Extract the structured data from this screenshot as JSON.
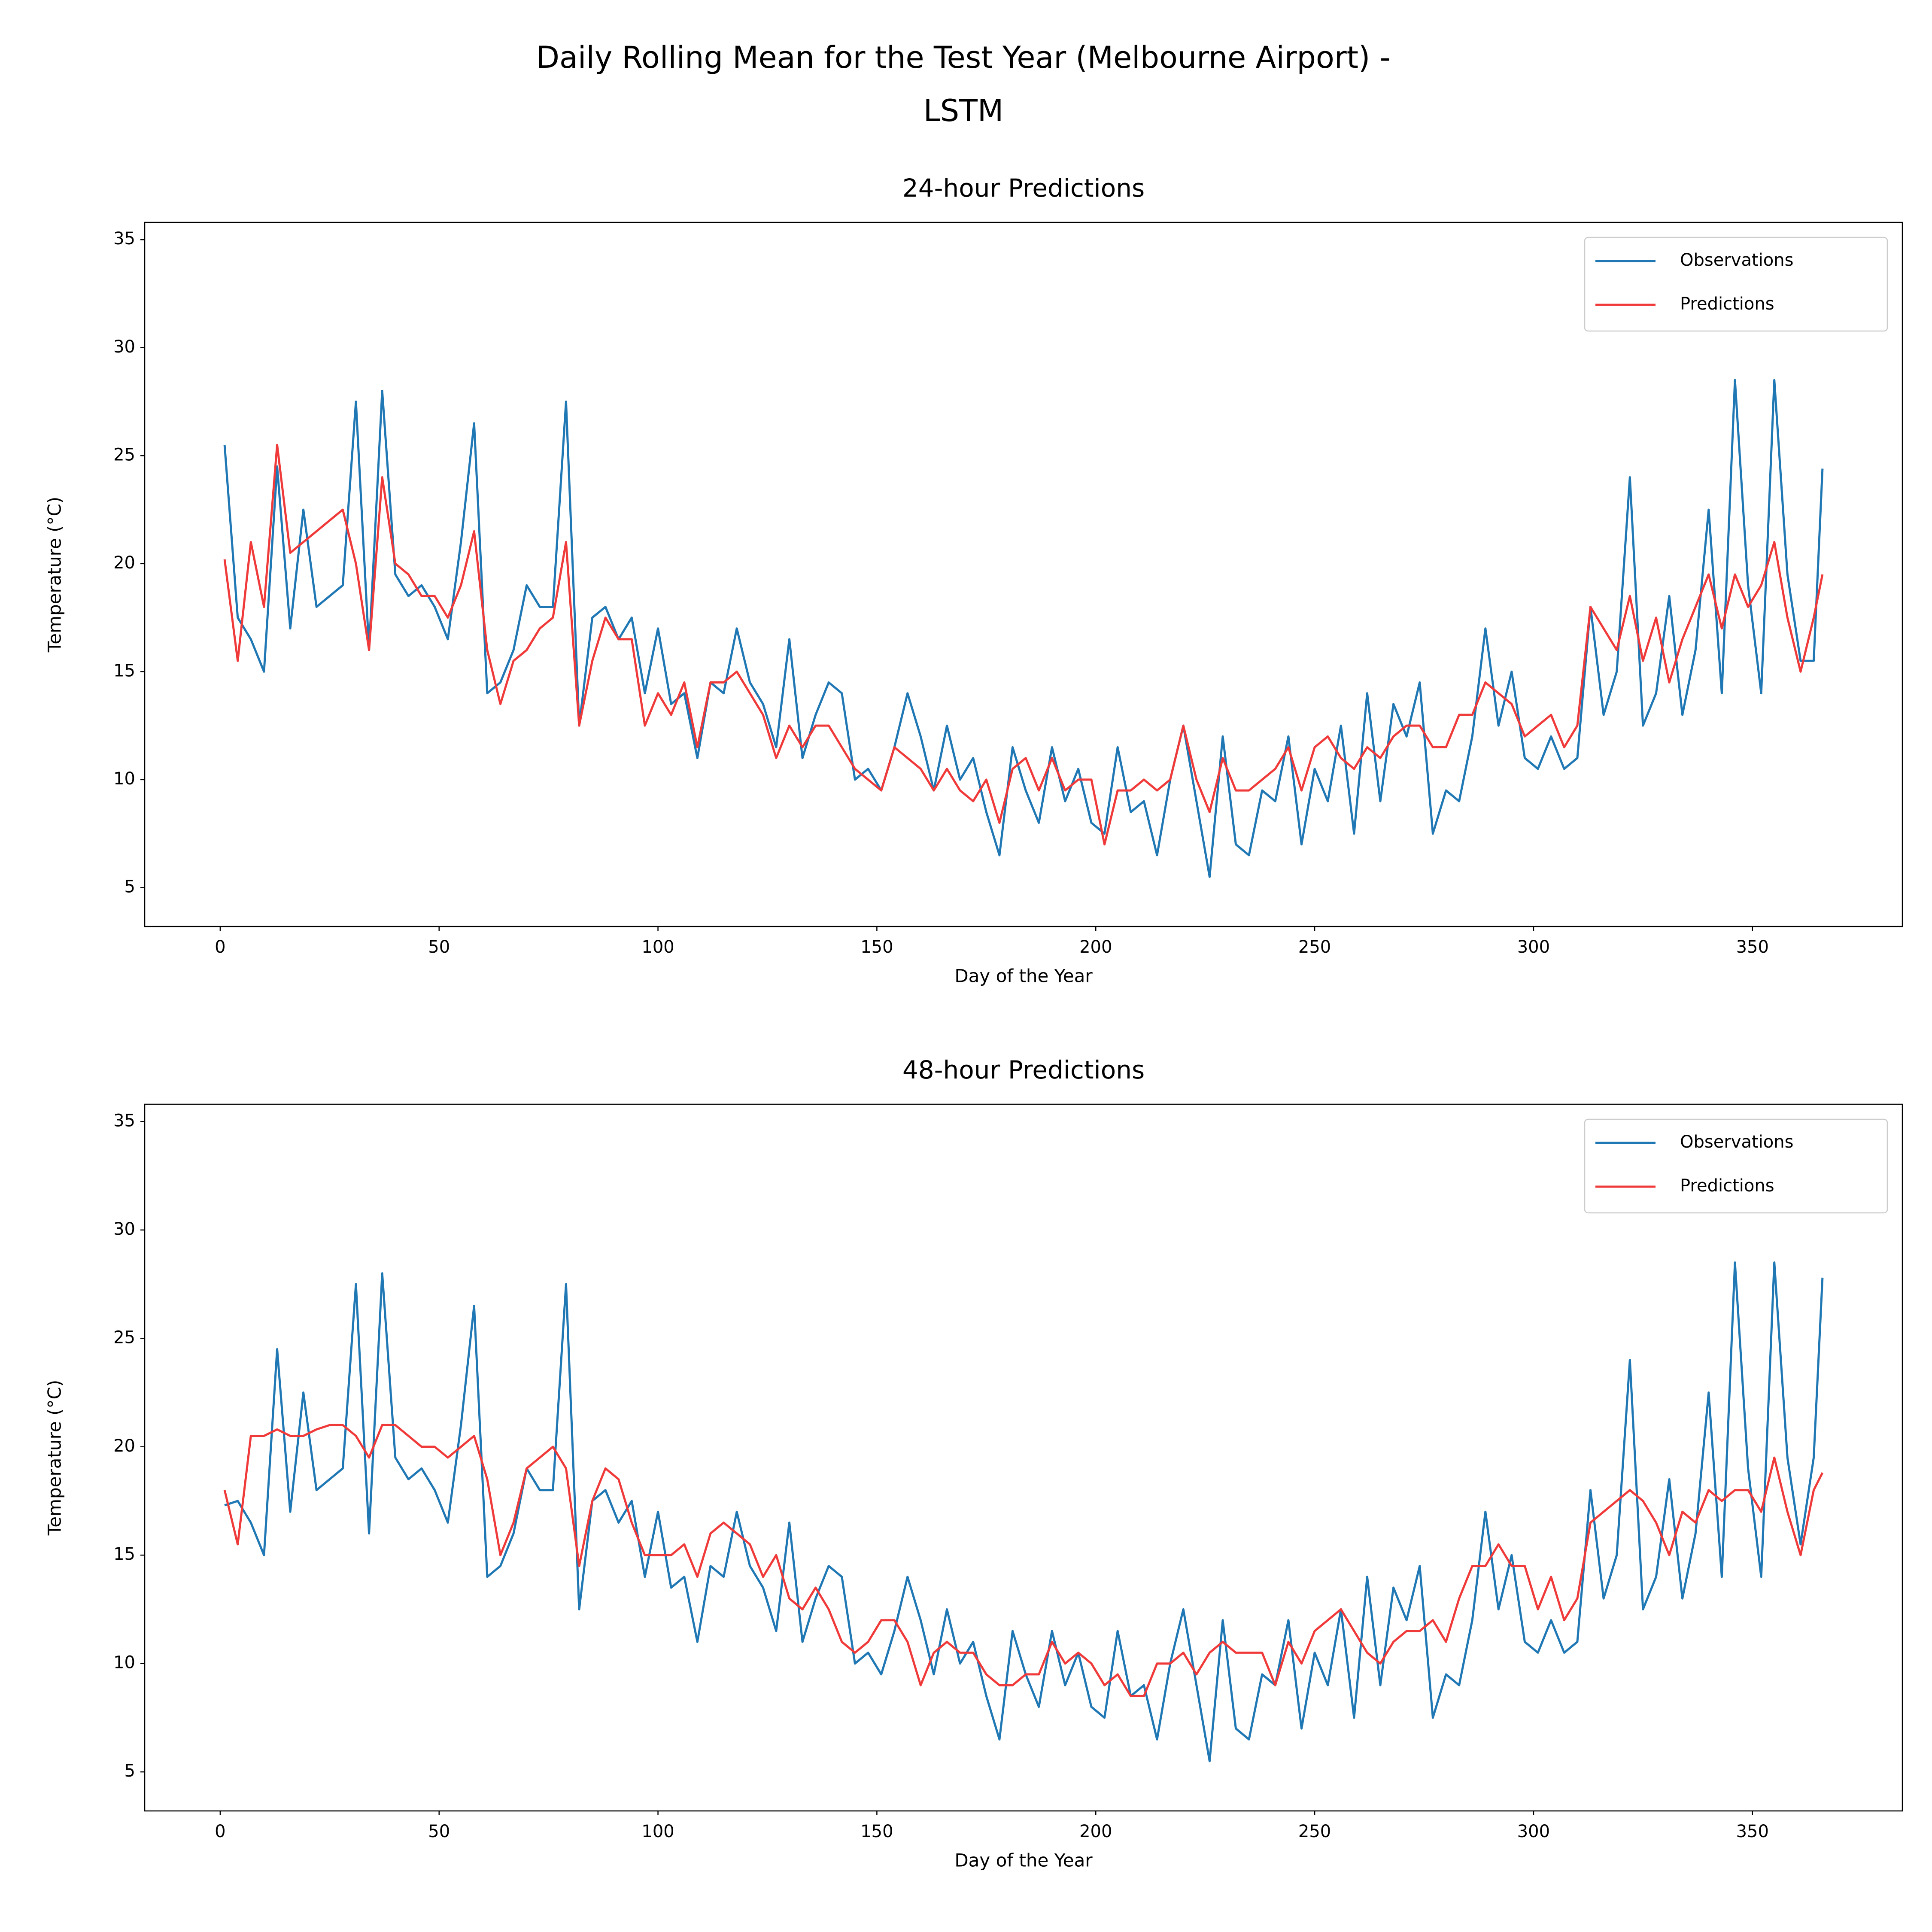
{
  "title": "Daily Rolling Mean for the Test Year (Melbourne Airport) -\nLSTM",
  "chart_data": [
    {
      "type": "line",
      "title": "24-hour Predictions",
      "x_label": "Day of the Year",
      "y_label": "Temperature (°C)",
      "xlim": [
        -17.25,
        384.25
      ],
      "xticks": [
        0,
        50,
        100,
        150,
        200,
        250,
        300,
        350
      ],
      "ylim": [
        3.2,
        35.8
      ],
      "yticks": [
        5,
        10,
        15,
        20,
        25,
        30,
        35
      ],
      "legend": "upper right",
      "x": [
        1,
        4,
        7,
        10,
        13,
        16,
        19,
        22,
        25,
        28,
        31,
        34,
        37,
        40,
        43,
        46,
        49,
        52,
        55,
        58,
        61,
        64,
        67,
        70,
        73,
        76,
        79,
        82,
        85,
        88,
        91,
        94,
        97,
        100,
        103,
        106,
        109,
        112,
        115,
        118,
        121,
        124,
        127,
        130,
        133,
        136,
        139,
        142,
        145,
        148,
        151,
        154,
        157,
        160,
        163,
        166,
        169,
        172,
        175,
        178,
        181,
        184,
        187,
        190,
        193,
        196,
        199,
        202,
        205,
        208,
        211,
        214,
        217,
        220,
        223,
        226,
        229,
        232,
        235,
        238,
        241,
        244,
        247,
        250,
        253,
        256,
        259,
        262,
        265,
        268,
        271,
        274,
        277,
        280,
        283,
        286,
        289,
        292,
        295,
        298,
        301,
        304,
        307,
        310,
        313,
        316,
        319,
        322,
        325,
        328,
        331,
        334,
        337,
        340,
        343,
        346,
        349,
        352,
        355,
        358,
        361,
        364,
        366
      ],
      "series": [
        {
          "name": "Observations",
          "color": "#1f77b4",
          "values": [
            25.5,
            17.5,
            16.5,
            15.0,
            24.5,
            17.0,
            22.5,
            18.0,
            18.5,
            19.0,
            27.5,
            16.0,
            28.0,
            19.5,
            18.5,
            19.0,
            18.0,
            16.5,
            21.0,
            26.5,
            14.0,
            14.5,
            16.0,
            19.0,
            18.0,
            18.0,
            27.5,
            12.5,
            17.5,
            18.0,
            16.5,
            17.5,
            14.0,
            17.0,
            13.5,
            14.0,
            11.0,
            14.5,
            14.0,
            17.0,
            14.5,
            13.5,
            11.5,
            16.5,
            11.0,
            13.0,
            14.5,
            14.0,
            10.0,
            10.5,
            9.5,
            11.5,
            14.0,
            12.0,
            9.5,
            12.5,
            10.0,
            11.0,
            8.5,
            6.5,
            11.5,
            9.5,
            8.0,
            11.5,
            9.0,
            10.5,
            8.0,
            7.5,
            11.5,
            8.5,
            9.0,
            6.5,
            10.0,
            12.5,
            9.0,
            5.5,
            12.0,
            7.0,
            6.5,
            9.5,
            9.0,
            12.0,
            7.0,
            10.5,
            9.0,
            12.5,
            7.5,
            14.0,
            9.0,
            13.5,
            12.0,
            14.5,
            7.5,
            9.5,
            9.0,
            12.0,
            17.0,
            12.5,
            15.0,
            11.0,
            10.5,
            12.0,
            10.5,
            11.0,
            18.0,
            13.0,
            15.0,
            24.0,
            12.5,
            14.0,
            18.5,
            13.0,
            16.0,
            22.5,
            14.0,
            28.5,
            19.0,
            14.0,
            28.5,
            19.5,
            15.5,
            15.5,
            24.4
          ]
        },
        {
          "name": "Predictions",
          "color": "#f03a3a",
          "values": [
            20.2,
            15.5,
            21,
            18.0,
            25.5,
            20.5,
            21,
            21.5,
            22,
            22.5,
            20,
            16,
            24,
            20,
            19.5,
            18.5,
            18.5,
            17.5,
            19,
            21.5,
            16,
            13.5,
            15.5,
            16,
            17,
            17.5,
            21,
            12.5,
            15.5,
            17.5,
            16.5,
            16.5,
            12.5,
            14,
            13,
            14.5,
            11.5,
            14.5,
            14.5,
            15,
            14,
            13,
            11,
            12.5,
            11.5,
            12.5,
            12.5,
            11.5,
            10.5,
            10,
            9.5,
            11.5,
            11,
            10.5,
            9.5,
            10.5,
            9.5,
            9,
            10,
            8,
            10.5,
            11,
            9.5,
            11,
            9.5,
            10,
            10,
            7,
            9.5,
            9.5,
            10,
            9.5,
            10,
            12.5,
            10,
            8.5,
            11,
            9.5,
            9.5,
            10,
            10.5,
            11.5,
            9.5,
            11.5,
            12,
            11,
            10.5,
            11.5,
            11,
            12,
            12.5,
            12.5,
            11.5,
            11.5,
            13,
            13,
            14.5,
            14,
            13.5,
            12,
            12.5,
            13,
            11.5,
            12.5,
            18,
            17,
            16,
            18.5,
            15.5,
            17.5,
            14.5,
            16.5,
            18,
            19.5,
            17,
            19.5,
            18,
            19,
            21,
            17.5,
            15,
            17.5,
            19.5
          ]
        }
      ]
    },
    {
      "type": "line",
      "title": "48-hour Predictions",
      "x_label": "Day of the Year",
      "y_label": "Temperature (°C)",
      "xlim": [
        -17.25,
        384.25
      ],
      "xticks": [
        0,
        50,
        100,
        150,
        200,
        250,
        300,
        350
      ],
      "ylim": [
        3.2,
        35.8
      ],
      "yticks": [
        5,
        10,
        15,
        20,
        25,
        30,
        35
      ],
      "legend": "upper right",
      "x": [
        1,
        4,
        7,
        10,
        13,
        16,
        19,
        22,
        25,
        28,
        31,
        34,
        37,
        40,
        43,
        46,
        49,
        52,
        55,
        58,
        61,
        64,
        67,
        70,
        73,
        76,
        79,
        82,
        85,
        88,
        91,
        94,
        97,
        100,
        103,
        106,
        109,
        112,
        115,
        118,
        121,
        124,
        127,
        130,
        133,
        136,
        139,
        142,
        145,
        148,
        151,
        154,
        157,
        160,
        163,
        166,
        169,
        172,
        175,
        178,
        181,
        184,
        187,
        190,
        193,
        196,
        199,
        202,
        205,
        208,
        211,
        214,
        217,
        220,
        223,
        226,
        229,
        232,
        235,
        238,
        241,
        244,
        247,
        250,
        253,
        256,
        259,
        262,
        265,
        268,
        271,
        274,
        277,
        280,
        283,
        286,
        289,
        292,
        295,
        298,
        301,
        304,
        307,
        310,
        313,
        316,
        319,
        322,
        325,
        328,
        331,
        334,
        337,
        340,
        343,
        346,
        349,
        352,
        355,
        358,
        361,
        364,
        366
      ],
      "series": [
        {
          "name": "Observations",
          "color": "#1f77b4",
          "values": [
            17.3,
            17.5,
            16.5,
            15.0,
            24.5,
            17.0,
            22.5,
            18.0,
            18.5,
            19.0,
            27.5,
            16.0,
            28.0,
            19.5,
            18.5,
            19.0,
            18.0,
            16.5,
            21.0,
            26.5,
            14.0,
            14.5,
            16.0,
            19.0,
            18.0,
            18.0,
            27.5,
            12.5,
            17.5,
            18.0,
            16.5,
            17.5,
            14.0,
            17.0,
            13.5,
            14.0,
            11.0,
            14.5,
            14.0,
            17.0,
            14.5,
            13.5,
            11.5,
            16.5,
            11.0,
            13.0,
            14.5,
            14.0,
            10.0,
            10.5,
            9.5,
            11.5,
            14.0,
            12.0,
            9.5,
            12.5,
            10.0,
            11.0,
            8.5,
            6.5,
            11.5,
            9.5,
            8.0,
            11.5,
            9.0,
            10.5,
            8.0,
            7.5,
            11.5,
            8.5,
            9.0,
            6.5,
            10.0,
            12.5,
            9.0,
            5.5,
            12.0,
            7.0,
            6.5,
            9.5,
            9.0,
            12.0,
            7.0,
            10.5,
            9.0,
            12.5,
            7.5,
            14.0,
            9.0,
            13.5,
            12.0,
            14.5,
            7.5,
            9.5,
            9.0,
            12.0,
            17.0,
            12.5,
            15.0,
            11.0,
            10.5,
            12.0,
            10.5,
            11.0,
            18.0,
            13.0,
            15.0,
            24.0,
            12.5,
            14.0,
            18.5,
            13.0,
            16.0,
            22.5,
            14.0,
            28.5,
            19.0,
            14.0,
            28.5,
            19.5,
            15.5,
            19.5,
            27.8
          ]
        },
        {
          "name": "Predictions",
          "color": "#f03a3a",
          "values": [
            18,
            15.5,
            20.5,
            20.5,
            20.8,
            20.5,
            20.5,
            20.8,
            21,
            21,
            20.5,
            19.5,
            21,
            21,
            20.5,
            20,
            20,
            19.5,
            20,
            20.5,
            18.5,
            15,
            16.5,
            19,
            19.5,
            20,
            19,
            14.5,
            17.5,
            19,
            18.5,
            16.5,
            15,
            15,
            15,
            15.5,
            14,
            16,
            16.5,
            16,
            15.5,
            14,
            15,
            13,
            12.5,
            13.5,
            12.5,
            11,
            10.5,
            11,
            12,
            12,
            11,
            9,
            10.5,
            11,
            10.5,
            10.5,
            9.5,
            9,
            9,
            9.5,
            9.5,
            11,
            10,
            10.5,
            10,
            9,
            9.5,
            8.5,
            8.5,
            10,
            10,
            10.5,
            9.5,
            10.5,
            11,
            10.5,
            10.5,
            10.5,
            9,
            11,
            10,
            11.5,
            12,
            12.5,
            11.5,
            10.5,
            10,
            11,
            11.5,
            11.5,
            12,
            11,
            13,
            14.5,
            14.5,
            15.5,
            14.5,
            14.5,
            12.5,
            14,
            12,
            13,
            16.5,
            17,
            17.5,
            18,
            17.5,
            16.5,
            15,
            17,
            16.5,
            18,
            17.5,
            18,
            18,
            17,
            19.5,
            17,
            15,
            18,
            18.8
          ]
        }
      ]
    }
  ]
}
